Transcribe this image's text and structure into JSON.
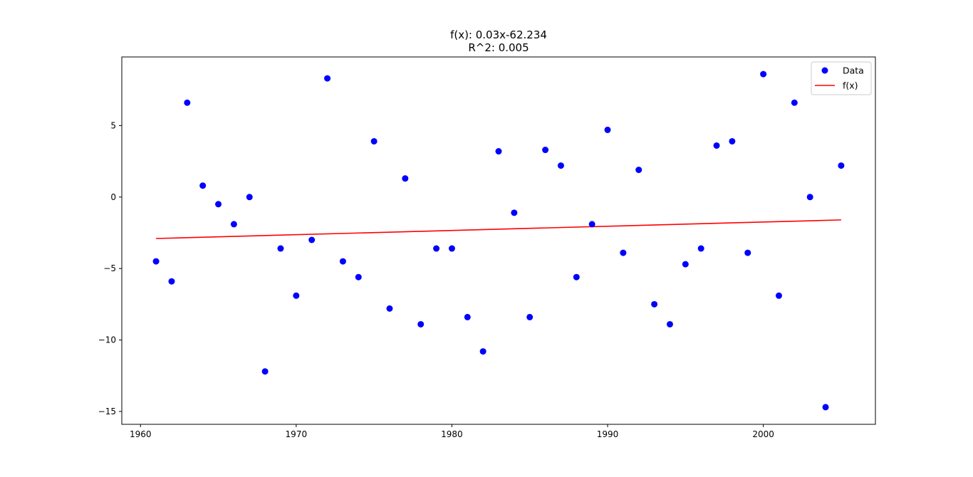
{
  "chart_data": {
    "type": "scatter",
    "title_line1": "f(x): 0.03x-62.234",
    "title_line2": "R^2: 0.005",
    "xlabel": "",
    "ylabel": "",
    "xlim": [
      1958.8,
      2007.2
    ],
    "ylim": [
      -15.9,
      9.8
    ],
    "x_ticks": [
      1960,
      1970,
      1980,
      1990,
      2000
    ],
    "x_tick_labels": [
      "1960",
      "1970",
      "1980",
      "1990",
      "2000"
    ],
    "y_ticks": [
      5,
      0,
      -5,
      -10,
      -15
    ],
    "y_tick_labels": [
      "5",
      "0",
      "−5",
      "−10",
      "−15"
    ],
    "legend_position": "upper-right",
    "series": [
      {
        "name": "Data",
        "kind": "scatter",
        "color": "#0000ff",
        "points": [
          [
            1961,
            -4.5
          ],
          [
            1962,
            -5.9
          ],
          [
            1963,
            6.6
          ],
          [
            1964,
            0.8
          ],
          [
            1965,
            -0.5
          ],
          [
            1966,
            -1.9
          ],
          [
            1967,
            0.0
          ],
          [
            1968,
            -12.2
          ],
          [
            1969,
            -3.6
          ],
          [
            1970,
            -6.9
          ],
          [
            1971,
            -3.0
          ],
          [
            1972,
            8.3
          ],
          [
            1973,
            -4.5
          ],
          [
            1974,
            -5.6
          ],
          [
            1975,
            3.9
          ],
          [
            1976,
            -7.8
          ],
          [
            1977,
            1.3
          ],
          [
            1978,
            -8.9
          ],
          [
            1979,
            -3.6
          ],
          [
            1980,
            -3.6
          ],
          [
            1981,
            -8.4
          ],
          [
            1982,
            -10.8
          ],
          [
            1983,
            3.2
          ],
          [
            1984,
            -1.1
          ],
          [
            1985,
            -8.4
          ],
          [
            1986,
            3.3
          ],
          [
            1987,
            2.2
          ],
          [
            1988,
            -5.6
          ],
          [
            1989,
            -1.9
          ],
          [
            1990,
            4.7
          ],
          [
            1991,
            -3.9
          ],
          [
            1992,
            1.9
          ],
          [
            1993,
            -7.5
          ],
          [
            1994,
            -8.9
          ],
          [
            1995,
            -4.7
          ],
          [
            1996,
            -3.6
          ],
          [
            1997,
            3.6
          ],
          [
            1998,
            3.9
          ],
          [
            1999,
            -3.9
          ],
          [
            2000,
            8.6
          ],
          [
            2001,
            -6.9
          ],
          [
            2002,
            6.6
          ],
          [
            2003,
            0.0
          ],
          [
            2004,
            -14.7
          ],
          [
            2005,
            2.2
          ]
        ]
      },
      {
        "name": "f(x)",
        "kind": "line",
        "color": "#ff0000",
        "points": [
          [
            1961,
            -2.9
          ],
          [
            2005,
            -1.6
          ]
        ]
      }
    ]
  }
}
